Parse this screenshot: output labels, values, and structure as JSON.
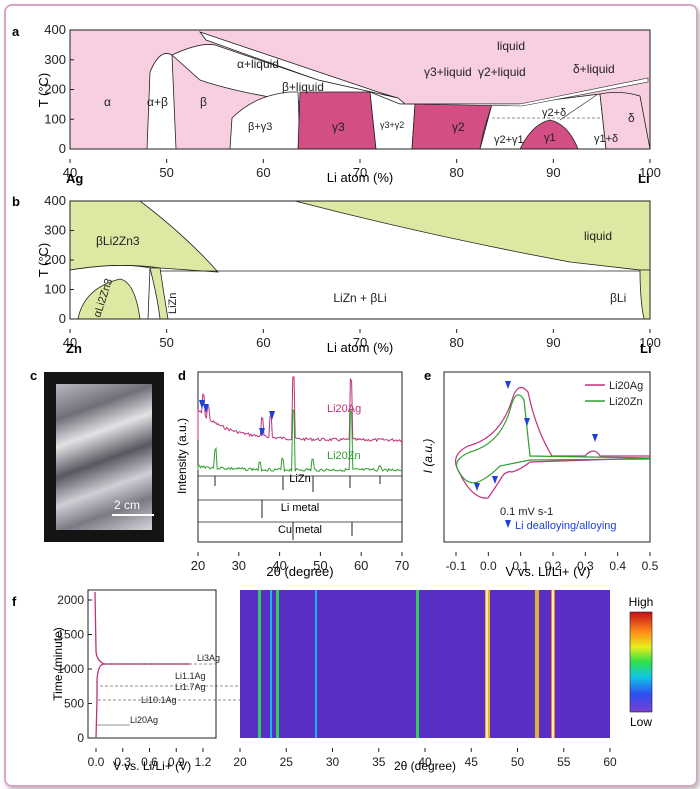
{
  "panels": {
    "a": {
      "label": "a",
      "ylabel": "T (°C)",
      "xlabel": "Li atom (%)",
      "left_element": "Ag",
      "right_element": "Li",
      "xticks": [
        "40",
        "50",
        "60",
        "70",
        "80",
        "90",
        "100"
      ],
      "yticks": [
        "0",
        "100",
        "200",
        "300",
        "400"
      ],
      "phases": [
        "liquid",
        "α+liquid",
        "β+liquid",
        "γ3+liquid",
        "γ2+liquid",
        "δ+liquid",
        "α",
        "α+β",
        "β",
        "β+γ3",
        "γ3",
        "γ3+γ2",
        "γ2",
        "γ2+δ",
        "γ2+γ1",
        "γ1",
        "γ1+δ",
        "δ"
      ]
    },
    "b": {
      "label": "b",
      "ylabel": "T (°C)",
      "xlabel": "Li atom (%)",
      "left_element": "Zn",
      "right_element": "Li",
      "xticks": [
        "40",
        "50",
        "60",
        "70",
        "80",
        "90",
        "100"
      ],
      "yticks": [
        "0",
        "100",
        "200",
        "300",
        "400"
      ],
      "phases": [
        "βLi2Zn3",
        "liquid",
        "αLi2Zn3",
        "LiZn",
        "LiZn + βLi",
        "βLi"
      ]
    },
    "c": {
      "label": "c",
      "scale_bar": "2 cm"
    },
    "d": {
      "label": "d",
      "ylabel": "Intensity (a.u.)",
      "xlabel": "2θ (degree)",
      "xticks": [
        "20",
        "30",
        "40",
        "50",
        "60",
        "70"
      ],
      "traces": [
        "Li20Ag",
        "Li20Zn"
      ],
      "references": [
        "LiZn",
        "Li metal",
        "Cu metal"
      ]
    },
    "e": {
      "label": "e",
      "ylabel": "I (a.u.)",
      "xlabel": "V vs. Li/Li+ (V)",
      "xticks": [
        "-0.1",
        "0.0",
        "0.1",
        "0.2",
        "0.3",
        "0.4",
        "0.5"
      ],
      "legend": [
        "Li20Ag",
        "Li20Zn"
      ],
      "scan_rate": "0.1 mV s-1",
      "marker_label": "Li dealloying/alloying"
    },
    "f": {
      "label": "f",
      "ylabel": "Time (minute)",
      "xlabel_left": "V vs. Li/Li+ (V)",
      "xlabel_right": "2θ (degree)",
      "yticks": [
        "0",
        "500",
        "1000",
        "1500",
        "2000"
      ],
      "xticks_left": [
        "0.0",
        "0.3",
        "0.6",
        "0.9",
        "1.2"
      ],
      "xticks_right": [
        "20",
        "25",
        "30",
        "35",
        "40",
        "45",
        "50",
        "55",
        "60"
      ],
      "annotations": [
        "Li3Ag",
        "Li1.1Ag",
        "Li1.7Ag",
        "Li10.1Ag",
        "Li20Ag"
      ],
      "colorbar_high": "High",
      "colorbar_low": "Low"
    }
  },
  "colors": {
    "pink_light": "#f7cfe0",
    "pink_dark": "#d24e84",
    "green_light": "#dde9a2",
    "li_ag": "#c2307b",
    "li_zn": "#2e9e2e",
    "marker": "#1f3fd9"
  }
}
